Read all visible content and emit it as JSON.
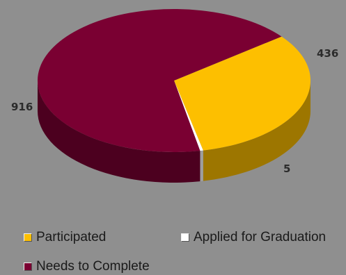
{
  "chart_data": {
    "type": "pie",
    "title": "",
    "style": "3d",
    "categories": [
      "Participated",
      "Applied for Graduation",
      "Needs to Complete"
    ],
    "values": [
      436,
      5,
      916
    ],
    "colors": {
      "Participated": "#fdbf00",
      "Applied for Graduation": "#ffffff",
      "Needs to Complete": "#7a0032"
    },
    "data_labels": [
      "436",
      "5",
      "916"
    ],
    "legend": {
      "placement": "bottom",
      "items": [
        "Participated",
        "Applied for Graduation",
        "Needs to Complete"
      ]
    }
  }
}
